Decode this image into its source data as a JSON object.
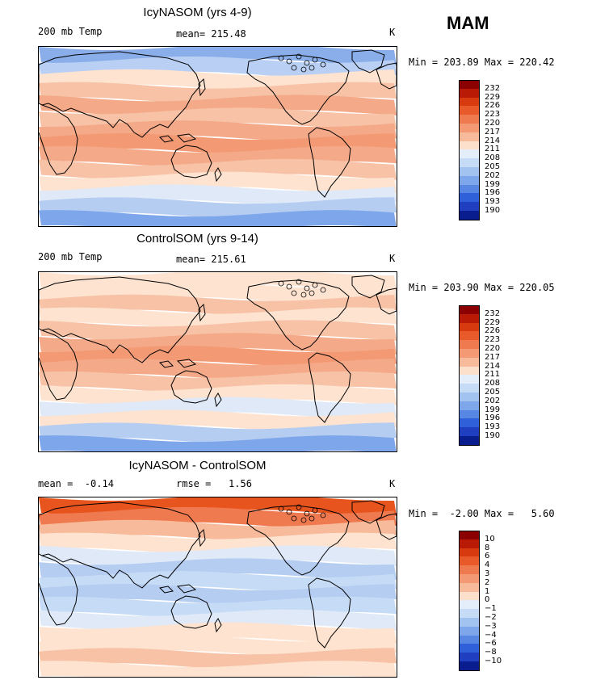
{
  "season": "MAM",
  "panels": [
    {
      "title": "IcyNASOM (yrs 4-9)",
      "left_text": "200 mb Temp",
      "mid_text": "mean= 215.48",
      "unit": "K",
      "minmax": "Min = 203.89 Max = 220.42",
      "colorbar": {
        "labels": [
          "232",
          "229",
          "226",
          "223",
          "220",
          "217",
          "214",
          "211",
          "208",
          "205",
          "202",
          "199",
          "196",
          "193",
          "190"
        ],
        "colors": [
          "#8b0000",
          "#b81a05",
          "#d83a10",
          "#e85a2a",
          "#f07a50",
          "#f39a74",
          "#f7bb9b",
          "#fde0cc",
          "#e4eefa",
          "#c6dcf6",
          "#a2c2f0",
          "#7ea6ea",
          "#5887e3",
          "#2f60d9",
          "#1f3fc0",
          "#0a1d8f"
        ]
      },
      "bands": [
        "#8aaeea",
        "#b9d0f4",
        "#fde3d0",
        "#f7c2a6",
        "#f4a988",
        "#f7c2a6",
        "#f4a988",
        "#f39a74",
        "#f4a988",
        "#f7c2a6",
        "#fde3d0",
        "#dfe9f8",
        "#b6cdf2",
        "#7ea6ea"
      ]
    },
    {
      "title": "ControlSOM (yrs 9-14)",
      "left_text": "200 mb Temp",
      "mid_text": "mean= 215.61",
      "unit": "K",
      "minmax": "Min = 203.90 Max = 220.05",
      "colorbar": {
        "labels": [
          "232",
          "229",
          "226",
          "223",
          "220",
          "217",
          "214",
          "211",
          "208",
          "205",
          "202",
          "199",
          "196",
          "193",
          "190"
        ],
        "colors": [
          "#8b0000",
          "#b81a05",
          "#d83a10",
          "#e85a2a",
          "#f07a50",
          "#f39a74",
          "#f7bb9b",
          "#fde0cc",
          "#e4eefa",
          "#c6dcf6",
          "#a2c2f0",
          "#7ea6ea",
          "#5887e3",
          "#2f60d9",
          "#1f3fc0",
          "#0a1d8f"
        ]
      },
      "bands": [
        "#fde3d0",
        "#fde3d0",
        "#f7c2a6",
        "#fde3d0",
        "#f7c2a6",
        "#f4a988",
        "#f39a74",
        "#f4a988",
        "#f7c2a6",
        "#fde3d0",
        "#dfe9f8",
        "#fde3d0",
        "#b6cdf2",
        "#7ea6ea"
      ]
    },
    {
      "title": "IcyNASOM - ControlSOM",
      "left_text": "mean =  -0.14",
      "mid_text": "rmse =   1.56",
      "unit": "K",
      "minmax": "Min =  -2.00 Max =   5.60",
      "colorbar": {
        "labels": [
          "10",
          "8",
          "6",
          "4",
          "3",
          "2",
          "1",
          "0",
          "−1",
          "−2",
          "−3",
          "−4",
          "−6",
          "−8",
          "−10"
        ],
        "colors": [
          "#8b0000",
          "#b81a05",
          "#d83a10",
          "#e85a2a",
          "#f07a50",
          "#f39a74",
          "#f7bb9b",
          "#fde0cc",
          "#e4eefa",
          "#c6dcf6",
          "#a2c2f0",
          "#7ea6ea",
          "#5887e3",
          "#2f60d9",
          "#1f3fc0",
          "#0a1d8f"
        ]
      },
      "bands": [
        "#e8541e",
        "#f07a50",
        "#f7bb9b",
        "#fde3d0",
        "#dfe9f8",
        "#b6cdf2",
        "#c6dcf6",
        "#b6cdf2",
        "#c6dcf6",
        "#dfe9f8",
        "#fde3d0",
        "#fde3d0",
        "#f7c2a6",
        "#fde3d0"
      ]
    }
  ]
}
